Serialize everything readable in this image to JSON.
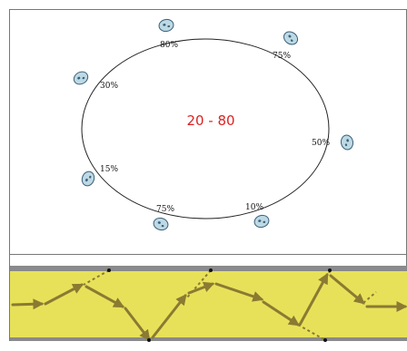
{
  "center_label": "20 - 80",
  "markers": [
    {
      "id": "p80",
      "label": "80%"
    },
    {
      "id": "p75-top",
      "label": "75%"
    },
    {
      "id": "p30",
      "label": "30%"
    },
    {
      "id": "p50",
      "label": "50%"
    },
    {
      "id": "p15",
      "label": "15%"
    },
    {
      "id": "p75-bottom",
      "label": "75%"
    },
    {
      "id": "p10",
      "label": "10%"
    }
  ],
  "colors": {
    "frame": "#777777",
    "ellipse": "#222222",
    "center_label": "#dd2222",
    "cell_fill": "#bcd9e4",
    "cell_stroke": "#3c5f78",
    "fiber_fill": "#e7e15a",
    "fiber_border": "#8a8a8a",
    "arrow": "#8a7a32",
    "dot": "#111111"
  }
}
